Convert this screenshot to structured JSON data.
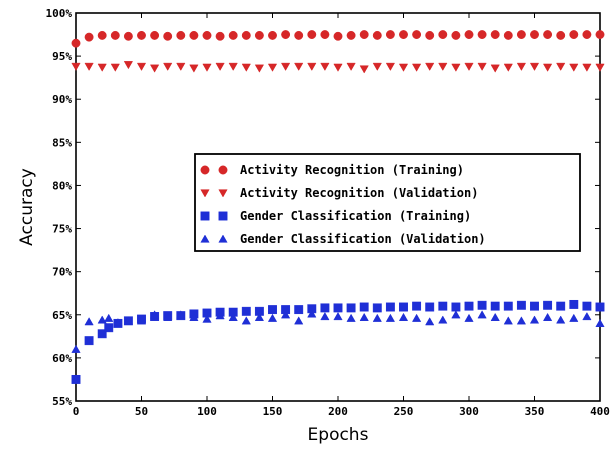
{
  "chart_data": {
    "type": "scatter",
    "xlabel": "Epochs",
    "ylabel": "Accuracy",
    "xlim": [
      0,
      400
    ],
    "ylim": [
      55,
      100
    ],
    "xticks": [
      0,
      50,
      100,
      150,
      200,
      250,
      300,
      350,
      400
    ],
    "yticks": [
      55,
      60,
      65,
      70,
      75,
      80,
      85,
      90,
      95,
      100
    ],
    "ytick_suffix": "%",
    "grid": false,
    "legend_position": "center-right",
    "series": [
      {
        "name": "Activity Recognition (Training)",
        "marker": "circle",
        "color": "#d62728",
        "x": [
          0,
          10,
          20,
          30,
          40,
          50,
          60,
          70,
          80,
          90,
          100,
          110,
          120,
          130,
          140,
          150,
          160,
          170,
          180,
          190,
          200,
          210,
          220,
          230,
          240,
          250,
          260,
          270,
          280,
          290,
          300,
          310,
          320,
          330,
          340,
          350,
          360,
          370,
          380,
          390,
          400
        ],
        "y": [
          96.5,
          97.2,
          97.4,
          97.4,
          97.3,
          97.4,
          97.4,
          97.3,
          97.4,
          97.4,
          97.4,
          97.3,
          97.4,
          97.4,
          97.4,
          97.4,
          97.5,
          97.4,
          97.5,
          97.5,
          97.3,
          97.4,
          97.5,
          97.4,
          97.5,
          97.5,
          97.5,
          97.4,
          97.5,
          97.4,
          97.5,
          97.5,
          97.5,
          97.4,
          97.5,
          97.5,
          97.5,
          97.4,
          97.5,
          97.5,
          97.5
        ]
      },
      {
        "name": "Activity Recognition (Validation)",
        "marker": "triangle-down",
        "color": "#d62728",
        "x": [
          0,
          10,
          20,
          30,
          40,
          50,
          60,
          70,
          80,
          90,
          100,
          110,
          120,
          130,
          140,
          150,
          160,
          170,
          180,
          190,
          200,
          210,
          220,
          230,
          240,
          250,
          260,
          270,
          280,
          290,
          300,
          310,
          320,
          330,
          340,
          350,
          360,
          370,
          380,
          390,
          400
        ],
        "y": [
          93.8,
          93.8,
          93.7,
          93.7,
          94.0,
          93.8,
          93.6,
          93.8,
          93.8,
          93.6,
          93.7,
          93.8,
          93.8,
          93.7,
          93.6,
          93.7,
          93.8,
          93.8,
          93.8,
          93.8,
          93.7,
          93.8,
          93.5,
          93.8,
          93.8,
          93.7,
          93.7,
          93.8,
          93.8,
          93.7,
          93.8,
          93.8,
          93.6,
          93.7,
          93.8,
          93.8,
          93.7,
          93.8,
          93.7,
          93.7,
          93.7
        ]
      },
      {
        "name": "Gender Classification (Training)",
        "marker": "square",
        "color": "#1f2fd6",
        "x": [
          0,
          10,
          20,
          25,
          32,
          40,
          50,
          60,
          70,
          80,
          90,
          100,
          110,
          120,
          130,
          140,
          150,
          160,
          170,
          180,
          190,
          200,
          210,
          220,
          230,
          240,
          250,
          260,
          270,
          280,
          290,
          300,
          310,
          320,
          330,
          340,
          350,
          360,
          370,
          380,
          390,
          400
        ],
        "y": [
          57.5,
          62.0,
          62.8,
          63.5,
          64.0,
          64.3,
          64.5,
          64.8,
          64.9,
          64.9,
          65.1,
          65.2,
          65.3,
          65.3,
          65.4,
          65.4,
          65.6,
          65.6,
          65.6,
          65.7,
          65.8,
          65.8,
          65.8,
          65.9,
          65.8,
          65.9,
          65.9,
          66.0,
          65.9,
          66.0,
          65.9,
          66.0,
          66.1,
          66.0,
          66.0,
          66.1,
          66.0,
          66.1,
          66.0,
          66.2,
          66.0,
          65.9
        ]
      },
      {
        "name": "Gender Classification (Validation)",
        "marker": "triangle-up",
        "color": "#1f2fd6",
        "x": [
          0,
          10,
          20,
          25,
          32,
          40,
          50,
          60,
          70,
          80,
          90,
          100,
          110,
          120,
          130,
          140,
          150,
          160,
          170,
          180,
          190,
          200,
          210,
          220,
          230,
          240,
          250,
          260,
          270,
          280,
          290,
          300,
          310,
          320,
          330,
          340,
          350,
          360,
          370,
          380,
          390,
          400
        ],
        "y": [
          61.0,
          64.2,
          64.4,
          64.6,
          64.1,
          64.3,
          64.3,
          65.0,
          64.7,
          65.0,
          64.7,
          64.5,
          64.9,
          64.7,
          64.3,
          64.7,
          64.6,
          65.0,
          64.3,
          65.1,
          64.8,
          64.8,
          64.6,
          64.7,
          64.6,
          64.6,
          64.7,
          64.6,
          64.2,
          64.4,
          65.0,
          64.6,
          65.0,
          64.7,
          64.3,
          64.3,
          64.4,
          64.7,
          64.4,
          64.6,
          64.8,
          64.0
        ]
      }
    ]
  }
}
